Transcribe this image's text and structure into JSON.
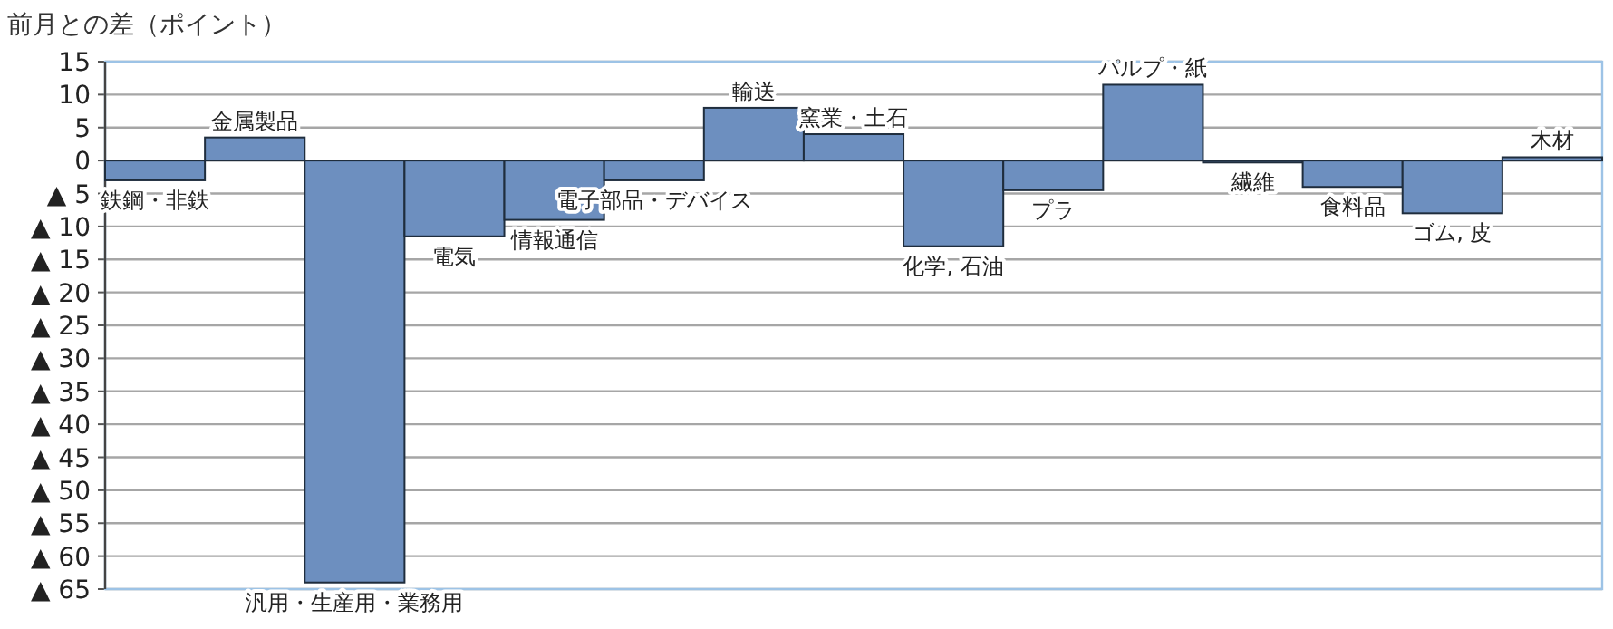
{
  "chart_data": {
    "type": "bar",
    "ylabel": "前月との差（ポイント）",
    "categories": [
      "鉄鋼・非鉄",
      "金属製品",
      "汎用・生産用・業務用",
      "電気",
      "情報通信",
      "電子部品・デバイス",
      "輸送",
      "窯業・土石",
      "化学, 石油",
      "プラ",
      "パルプ・紙",
      "繊維",
      "食料品",
      "ゴム, 皮",
      "木材"
    ],
    "values": [
      -3,
      3.5,
      -64,
      -11.5,
      -9,
      -3,
      8,
      4,
      -13,
      -4.5,
      11.5,
      -0.3,
      -4,
      -8,
      0.5
    ],
    "color": "#6d8fbf",
    "ylim": [
      -65,
      15
    ],
    "yticks": [
      15,
      10,
      5,
      0,
      {
        "value": -5,
        "label": "▲ 5"
      },
      {
        "value": -10,
        "label": "▲ 10"
      },
      {
        "value": -15,
        "label": "▲ 15"
      },
      {
        "value": -20,
        "label": "▲ 20"
      },
      {
        "value": -25,
        "label": "▲ 25"
      },
      {
        "value": -30,
        "label": "▲ 30"
      },
      {
        "value": -35,
        "label": "▲ 35"
      },
      {
        "value": -40,
        "label": "▲ 40"
      },
      {
        "value": -45,
        "label": "▲ 45"
      },
      {
        "value": -50,
        "label": "▲ 50"
      },
      {
        "value": -55,
        "label": "▲ 55"
      },
      {
        "value": -60,
        "label": "▲ 60"
      },
      {
        "value": -65,
        "label": "▲ 65"
      }
    ],
    "grid": "y"
  }
}
